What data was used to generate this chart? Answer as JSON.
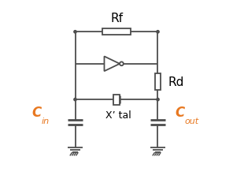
{
  "bg_color": "#ffffff",
  "line_color": "#4d4d4d",
  "text_color_black": "#000000",
  "text_color_cyan": "#e87820",
  "Rf_label": "Rf",
  "Rd_label": "Rd",
  "Cin_label": "C",
  "Cin_sub": "in",
  "Cout_label": "C",
  "Cout_sub": "out",
  "Xtal_label": "X’ tal",
  "fig_width": 2.96,
  "fig_height": 2.28,
  "dpi": 100,
  "xl": 2.8,
  "xr": 7.2,
  "yt": 7.8,
  "yi": 6.1,
  "ym": 4.2,
  "yb": 3.0,
  "yg": 1.5
}
